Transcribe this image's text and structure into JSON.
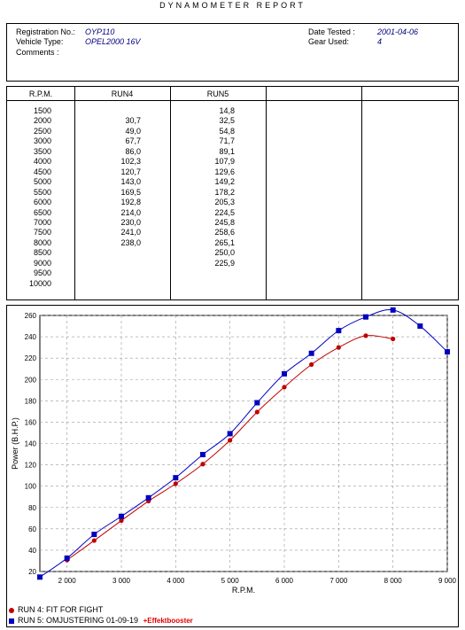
{
  "report_title": "DYNAMOMETER REPORT",
  "info": {
    "registration_label": "Registration No.:",
    "registration_value": "OYP110",
    "vehicle_label": "Vehicle Type:",
    "vehicle_value": "OPEL2000 16V",
    "comments_label": "Comments :",
    "date_label": "Date Tested :",
    "date_value": "2001-04-06",
    "gear_label": "Gear Used:",
    "gear_value": "4"
  },
  "table": {
    "headers": [
      "R.P.M.",
      "RUN4",
      "RUN5"
    ],
    "rows": [
      [
        "1500",
        "",
        "14,8"
      ],
      [
        "2000",
        "30,7",
        "32,5"
      ],
      [
        "2500",
        "49,0",
        "54,8"
      ],
      [
        "3000",
        "67,7",
        "71,7"
      ],
      [
        "3500",
        "86,0",
        "89,1"
      ],
      [
        "4000",
        "102,3",
        "107,9"
      ],
      [
        "4500",
        "120,7",
        "129,6"
      ],
      [
        "5000",
        "143,0",
        "149,2"
      ],
      [
        "5500",
        "169,5",
        "178,2"
      ],
      [
        "6000",
        "192,8",
        "205,3"
      ],
      [
        "6500",
        "214,0",
        "224,5"
      ],
      [
        "7000",
        "230,0",
        "245,8"
      ],
      [
        "7500",
        "241,0",
        "258,6"
      ],
      [
        "8000",
        "238,0",
        "265,1"
      ],
      [
        "8500",
        "",
        "250,0"
      ],
      [
        "9000",
        "",
        "225,9"
      ],
      [
        "9500",
        "",
        ""
      ],
      [
        "10000",
        "",
        ""
      ]
    ]
  },
  "chart_data": {
    "type": "line",
    "xlabel": "R.P.M.",
    "ylabel": "Power (B.H.P.)",
    "xlim": [
      1500,
      9000
    ],
    "ylim": [
      20,
      260
    ],
    "x_ticks": [
      2000,
      3000,
      4000,
      5000,
      6000,
      7000,
      8000,
      9000
    ],
    "x_tick_labels": [
      "2 000",
      "3 000",
      "4 000",
      "5 000",
      "6 000",
      "7 000",
      "8 000",
      "9 000"
    ],
    "y_ticks": [
      20,
      40,
      60,
      80,
      100,
      120,
      140,
      160,
      180,
      200,
      220,
      240,
      260
    ],
    "grid": true,
    "legend_position": "bottom-left",
    "series": [
      {
        "name": "RUN 4: FIT FOR FIGHT",
        "color": "#c00000",
        "marker": "circle",
        "x": [
          2000,
          2500,
          3000,
          3500,
          4000,
          4500,
          5000,
          5500,
          6000,
          6500,
          7000,
          7500,
          8000
        ],
        "values": [
          30.7,
          49.0,
          67.7,
          86.0,
          102.3,
          120.7,
          143.0,
          169.5,
          192.8,
          214.0,
          230.0,
          241.0,
          238.0
        ]
      },
      {
        "name": "RUN 5: OMJUSTERING 01-09-19",
        "annotation": "+Effektbooster",
        "color": "#0000c0",
        "marker": "square",
        "x": [
          1500,
          2000,
          2500,
          3000,
          3500,
          4000,
          4500,
          5000,
          5500,
          6000,
          6500,
          7000,
          7500,
          8000,
          8500,
          9000
        ],
        "values": [
          14.8,
          32.5,
          54.8,
          71.7,
          89.1,
          107.9,
          129.6,
          149.2,
          178.2,
          205.3,
          224.5,
          245.8,
          258.6,
          265.1,
          250.0,
          225.9
        ]
      }
    ]
  }
}
